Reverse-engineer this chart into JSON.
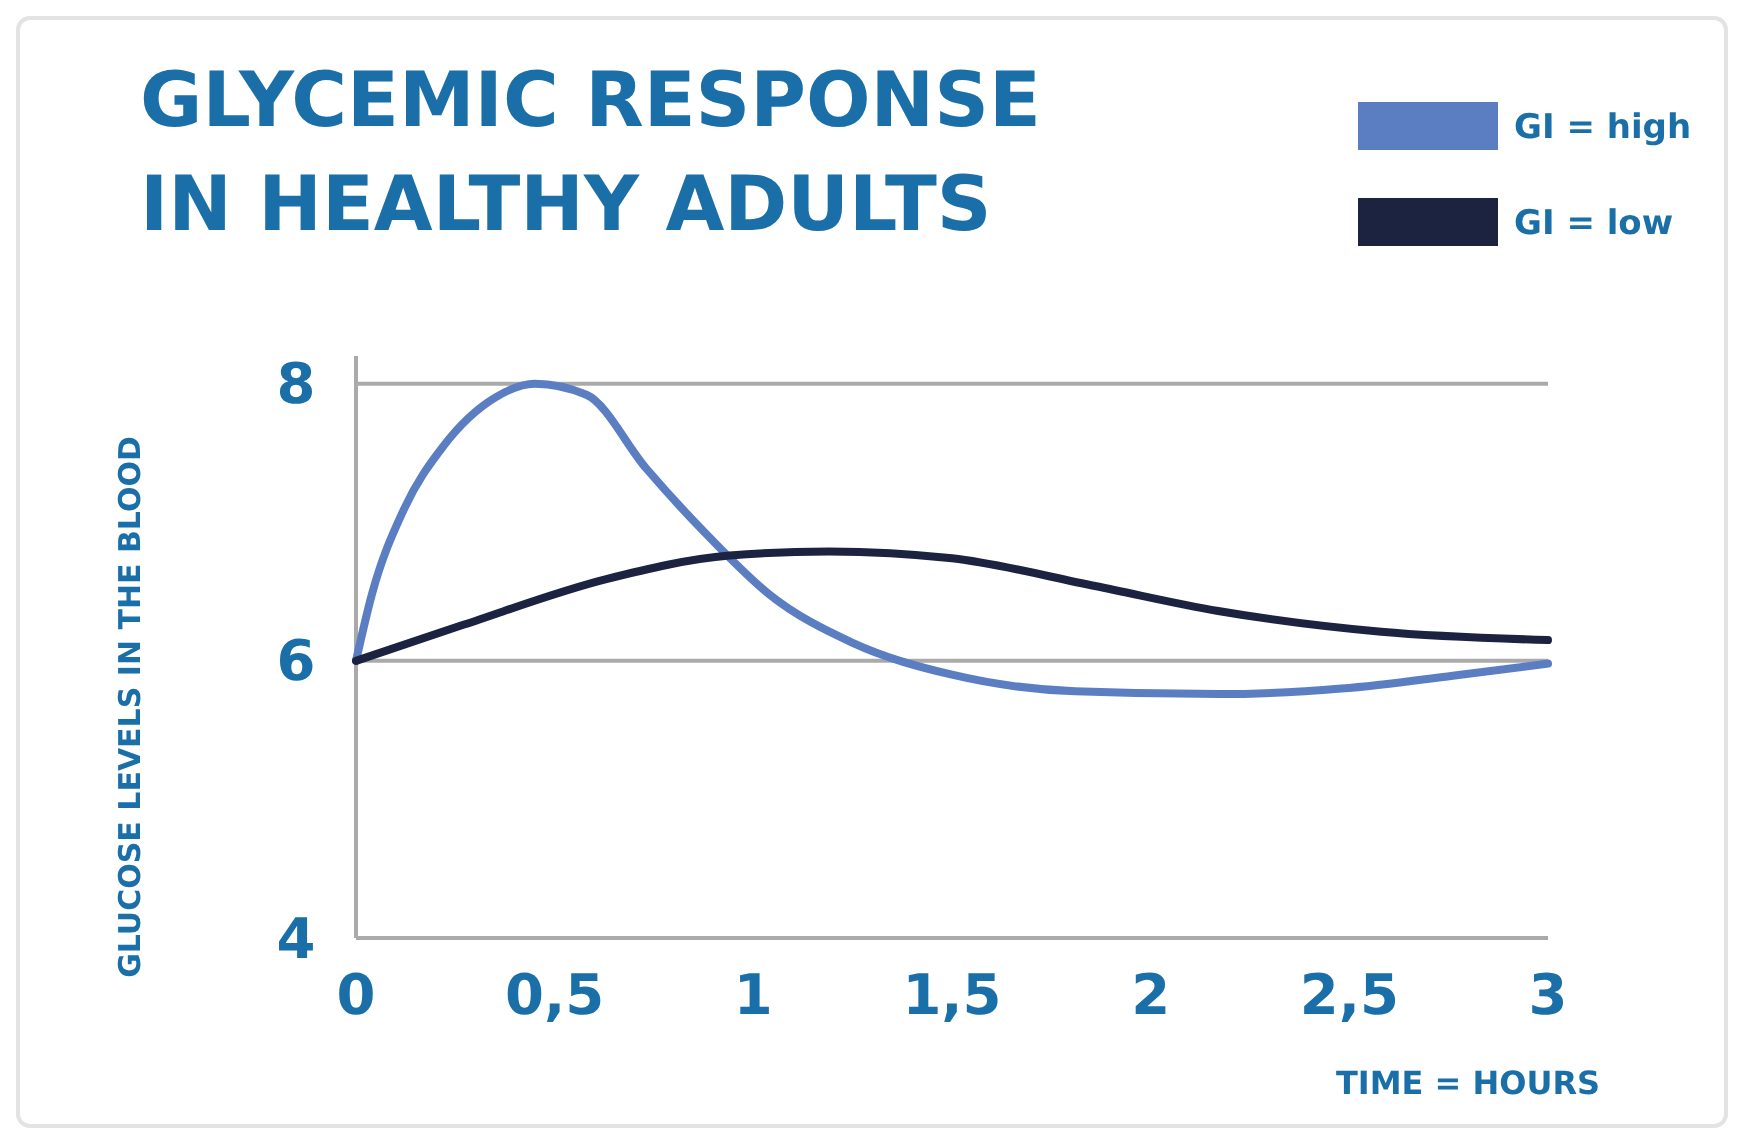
{
  "chart_data": {
    "type": "line",
    "title": "GLYCEMIC RESPONSE\nIN HEALTHY ADULTS",
    "xlabel": "TIME = HOURS",
    "ylabel": "GLUCOSE LEVELS IN THE BLOOD",
    "xlim": [
      0,
      3
    ],
    "xticks": [
      0,
      {
        "value": 0.5,
        "label": "0,5"
      },
      1,
      {
        "value": 1.5,
        "label": "1,5"
      },
      2,
      {
        "value": 2.5,
        "label": "2,5"
      },
      3
    ],
    "ylim": [
      4,
      8.2
    ],
    "yticks": [
      4,
      6,
      8
    ],
    "grid": "y",
    "legend": "top right",
    "marker": "none",
    "line_style": "solid",
    "series": [
      {
        "name": "GI = high",
        "color": "#5b7ec2",
        "x": [
          0,
          0.04,
          0.12,
          0.22,
          0.35,
          0.45,
          0.58,
          0.73,
          0.89,
          1.04,
          1.25,
          1.5,
          1.81,
          2.17,
          2.48,
          2.78,
          3
        ],
        "values": [
          6,
          6.48,
          7.09,
          7.55,
          7.9,
          8.0,
          7.92,
          7.39,
          6.89,
          6.48,
          6.13,
          5.9,
          5.78,
          5.76,
          5.8,
          5.9,
          5.98
        ]
      },
      {
        "name": "GI = low",
        "color": "#1c2340",
        "x": [
          0,
          0.27,
          0.63,
          0.94,
          1.19,
          1.5,
          1.86,
          2.17,
          2.58,
          3
        ],
        "values": [
          6,
          6.26,
          6.59,
          6.76,
          6.79,
          6.74,
          6.54,
          6.36,
          6.21,
          6.15
        ]
      }
    ]
  }
}
